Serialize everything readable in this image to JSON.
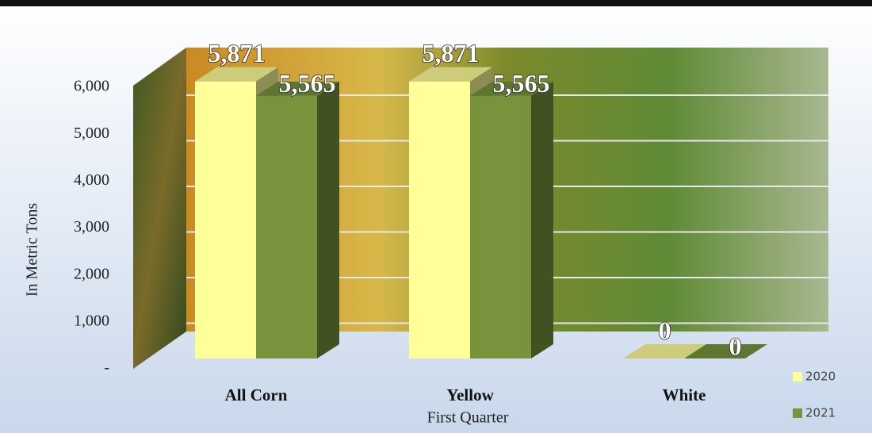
{
  "chart_data": {
    "type": "bar3d",
    "categories": [
      "All Corn",
      "Yellow",
      "White"
    ],
    "x_label": "First Quarter",
    "y_label": "In Metric Tons",
    "series": [
      {
        "name": "2020",
        "color": "#ffff99",
        "values": [
          5871,
          5871,
          0
        ],
        "value_labels": [
          "5,871",
          "5,871",
          "0"
        ]
      },
      {
        "name": "2021",
        "color": "#77933c",
        "values": [
          5565,
          5565,
          0
        ],
        "value_labels": [
          "5,565",
          "5,565",
          "0"
        ]
      }
    ],
    "ylim": [
      0,
      6000
    ],
    "yticks": [
      {
        "value": 0,
        "label": "-"
      },
      {
        "value": 1000,
        "label": "1,000"
      },
      {
        "value": 2000,
        "label": "2,000"
      },
      {
        "value": 3000,
        "label": "3,000"
      },
      {
        "value": 4000,
        "label": "4,000"
      },
      {
        "value": 5000,
        "label": "5,000"
      },
      {
        "value": 6000,
        "label": "6,000"
      }
    ],
    "grid": true,
    "legend": "bottom-right"
  }
}
